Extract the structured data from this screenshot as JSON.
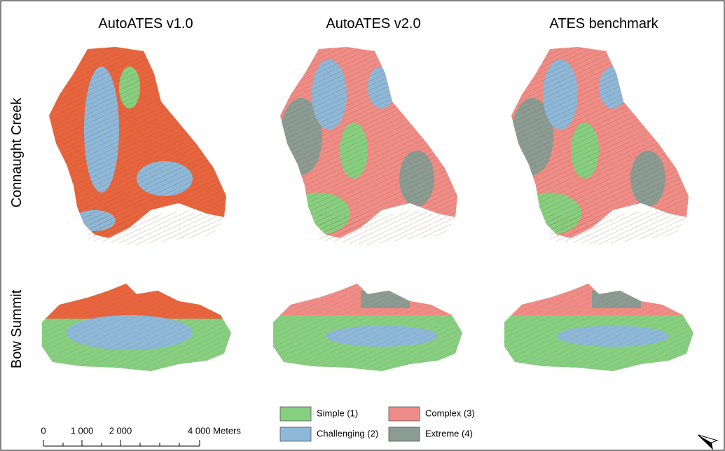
{
  "columns": [
    "AutoATES v1.0",
    "AutoATES v2.0",
    "ATES benchmark"
  ],
  "rows": [
    "Connaught Creek",
    "Bow Summit"
  ],
  "legend": [
    {
      "label": "Simple (1)",
      "color": "#86cf80"
    },
    {
      "label": "Challenging (2)",
      "color": "#8db8da"
    },
    {
      "label": "Complex (3)",
      "color": "#f08c87"
    },
    {
      "label": "Extreme (4)",
      "color": "#8a9c94"
    }
  ],
  "scale_bar": [
    "0",
    "1 000",
    "2 000",
    "4 000 Meters"
  ]
}
